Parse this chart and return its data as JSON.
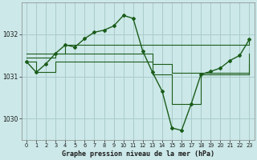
{
  "title": "Graphe pression niveau de la mer (hPa)",
  "bg_color": "#cce8e8",
  "grid_color": "#aacccc",
  "line_color": "#1a5c1a",
  "xlim": [
    -0.5,
    23.5
  ],
  "ylim": [
    1029.5,
    1032.75
  ],
  "yticks": [
    1030,
    1031,
    1032
  ],
  "xticks": [
    0,
    1,
    2,
    3,
    4,
    5,
    6,
    7,
    8,
    9,
    10,
    11,
    12,
    13,
    14,
    15,
    16,
    17,
    18,
    19,
    20,
    21,
    22,
    23
  ],
  "series_main": {
    "x": [
      0,
      1,
      2,
      3,
      4,
      5,
      6,
      7,
      8,
      9,
      10,
      11,
      12,
      13,
      14,
      15,
      16,
      17,
      18,
      19,
      20,
      21,
      22,
      23
    ],
    "y": [
      1031.35,
      1031.1,
      1031.3,
      1031.55,
      1031.75,
      1031.7,
      1031.9,
      1032.05,
      1032.1,
      1032.2,
      1032.45,
      1032.38,
      1031.6,
      1031.1,
      1030.65,
      1029.78,
      1029.72,
      1030.35,
      1031.05,
      1031.12,
      1031.2,
      1031.38,
      1031.5,
      1031.88
    ]
  },
  "series_max": {
    "x": [
      0,
      4,
      11,
      23
    ],
    "y": [
      1031.55,
      1031.75,
      1031.75,
      1031.88
    ]
  },
  "series_min": {
    "x": [
      0,
      1,
      3,
      11,
      13,
      15,
      18,
      23
    ],
    "y": [
      1031.35,
      1031.1,
      1031.35,
      1031.35,
      1031.05,
      1030.35,
      1031.05,
      1031.3
    ]
  },
  "series_avg": {
    "x": [
      0,
      3,
      11,
      13,
      15,
      18,
      23
    ],
    "y": [
      1031.45,
      1031.55,
      1031.55,
      1031.3,
      1031.08,
      1031.08,
      1031.55
    ]
  }
}
